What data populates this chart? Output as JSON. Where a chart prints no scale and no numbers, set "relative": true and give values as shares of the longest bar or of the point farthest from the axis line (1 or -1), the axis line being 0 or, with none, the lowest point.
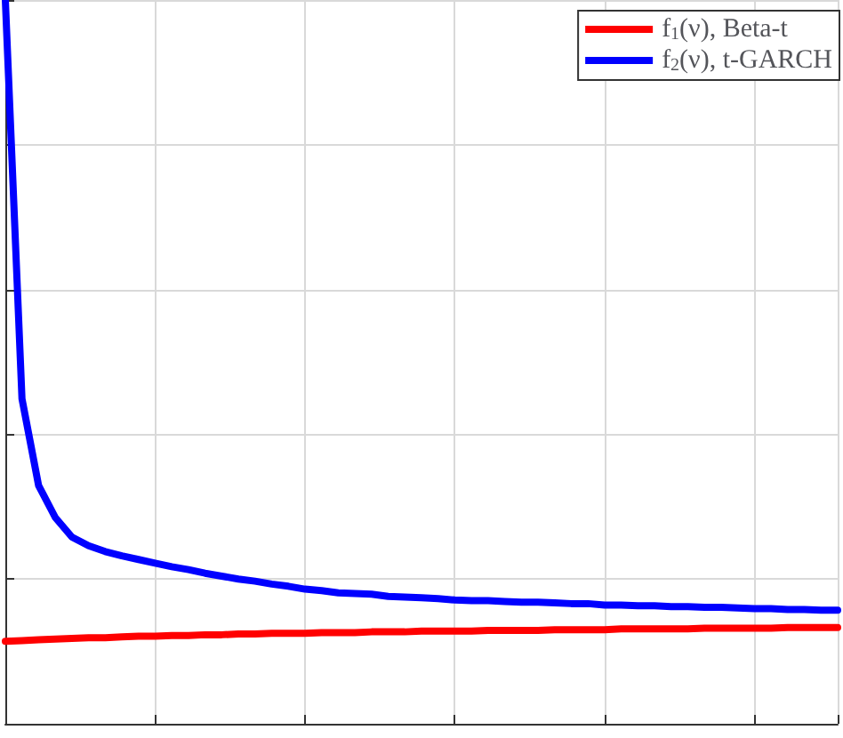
{
  "chart_data": {
    "type": "line",
    "relative": true,
    "grid": true,
    "legend": "top right",
    "marker": "none",
    "line_style": "solid",
    "categories": [
      null,
      null,
      null,
      null,
      null,
      null,
      null,
      null,
      null,
      null,
      null,
      null,
      null,
      null,
      null,
      null,
      null,
      null,
      null,
      null,
      null,
      null,
      null,
      null,
      null,
      null,
      null,
      null,
      null,
      null,
      null,
      null,
      null,
      null,
      null,
      null,
      null,
      null,
      null,
      null,
      null,
      null,
      null,
      null,
      null,
      null,
      null,
      null,
      null,
      null,
      null
    ],
    "series": [
      {
        "name": "f$_{1}$(ν), Beta-t",
        "color": "#ff0000",
        "values": [
          0.114,
          0.115,
          0.116,
          0.117,
          0.118,
          0.119,
          0.119,
          0.12,
          0.121,
          0.121,
          0.122,
          0.122,
          0.123,
          0.123,
          0.124,
          0.124,
          0.125,
          0.125,
          0.125,
          0.126,
          0.126,
          0.126,
          0.127,
          0.127,
          0.127,
          0.128,
          0.128,
          0.128,
          0.128,
          0.129,
          0.129,
          0.129,
          0.129,
          0.13,
          0.13,
          0.13,
          0.13,
          0.131,
          0.131,
          0.131,
          0.131,
          0.131,
          0.132,
          0.132,
          0.132,
          0.132,
          0.132,
          0.133,
          0.133,
          0.133,
          0.133
        ]
      },
      {
        "name": "f$_{2}$(ν), t-GARCH",
        "color": "#0000ff",
        "values": [
          1.0,
          0.449,
          0.329,
          0.285,
          0.258,
          0.246,
          0.238,
          0.232,
          0.227,
          0.222,
          0.217,
          0.213,
          0.208,
          0.204,
          0.2,
          0.197,
          0.193,
          0.19,
          0.186,
          0.184,
          0.181,
          0.18,
          0.179,
          0.176,
          0.175,
          0.174,
          0.173,
          0.171,
          0.17,
          0.17,
          0.169,
          0.168,
          0.168,
          0.167,
          0.166,
          0.166,
          0.164,
          0.164,
          0.163,
          0.163,
          0.162,
          0.162,
          0.161,
          0.161,
          0.16,
          0.159,
          0.159,
          0.158,
          0.158,
          0.157,
          0.157
        ]
      }
    ]
  }
}
